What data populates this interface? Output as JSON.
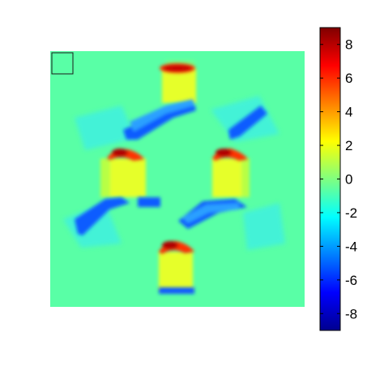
{
  "chart_data": {
    "type": "heatmap",
    "title": "",
    "xlabel": "",
    "ylabel": "",
    "grid": false,
    "colormap": "jet",
    "clim": [
      -9,
      9
    ],
    "colorbar": {
      "location": "right",
      "ticks": [
        8,
        6,
        4,
        2,
        0,
        -2,
        -4,
        -6,
        -8
      ],
      "tick_labels": [
        "8",
        "6",
        "4",
        "2",
        "0",
        "-2",
        "-4",
        "-6",
        "-8"
      ]
    },
    "background_value": -1,
    "features": [
      {
        "kind": "positive-peak",
        "location": "top center",
        "value": 9
      },
      {
        "kind": "positive-peak",
        "location": "upper left",
        "value": 9
      },
      {
        "kind": "positive-peak",
        "location": "upper right",
        "value": 9
      },
      {
        "kind": "positive-peak",
        "location": "bottom center",
        "value": 9
      },
      {
        "kind": "plateau",
        "location": "vertical edges of hexagon",
        "value": 1.5
      },
      {
        "kind": "negative-trough",
        "location": "diagonal edges of hexagon",
        "value": -5
      }
    ]
  }
}
